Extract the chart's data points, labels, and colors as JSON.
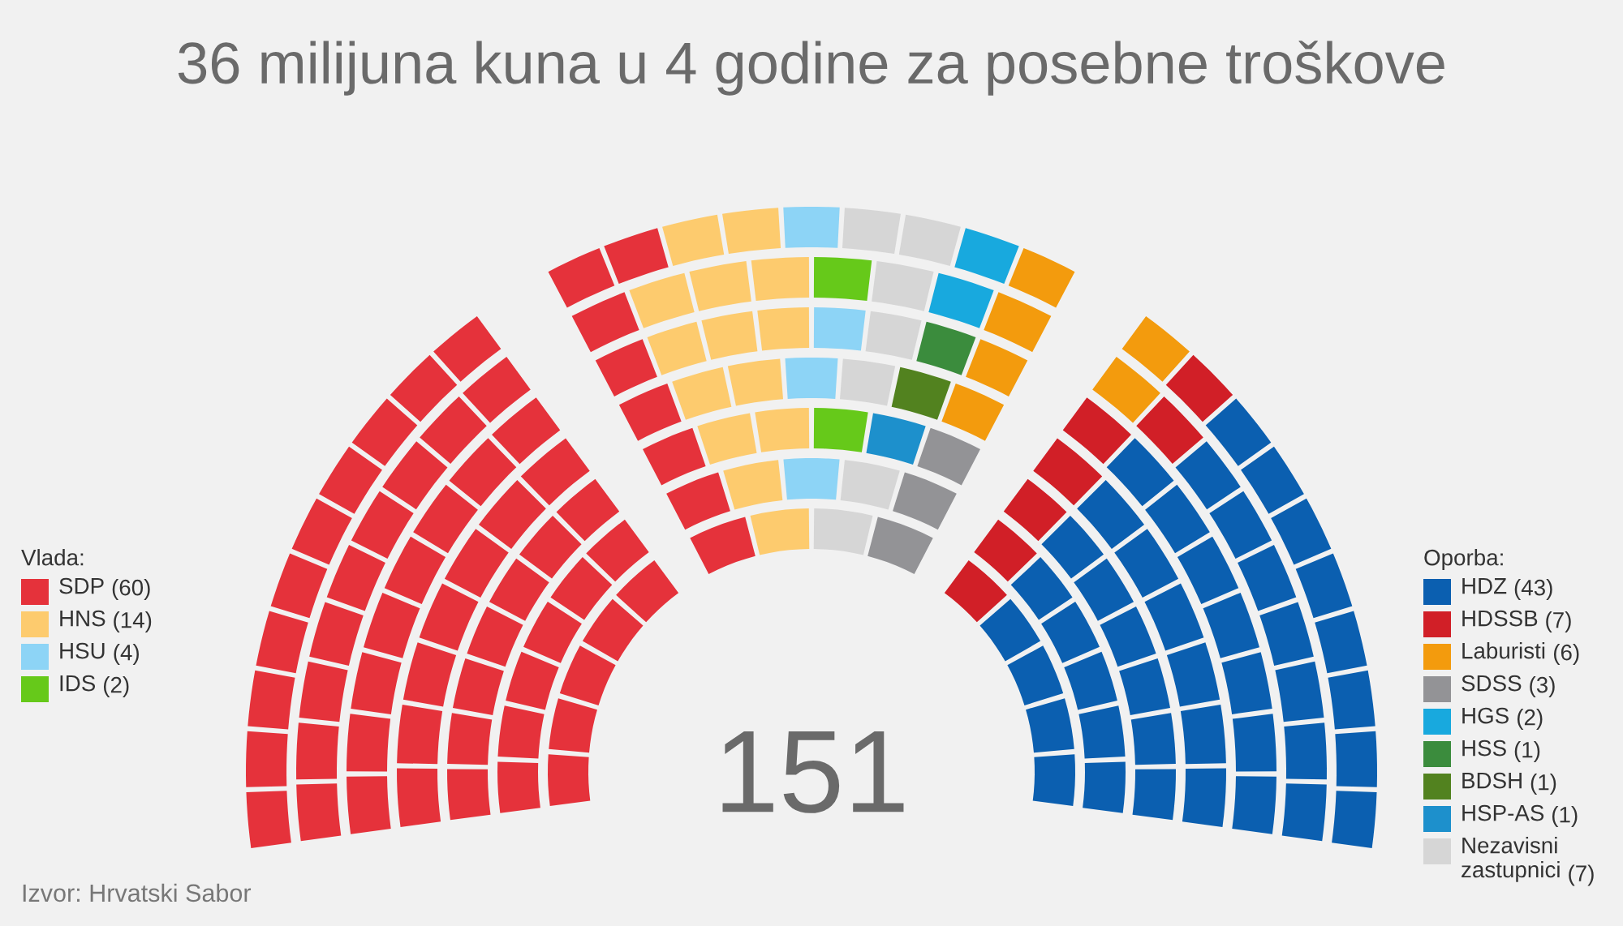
{
  "chart_data": [
    {
      "type": "other",
      "title": "36 milijuna kuna u 4 godine za posebne troškove",
      "legend_title": "Vlada:",
      "legend": "left",
      "series": [
        {
          "name": "SDP",
          "color": "#e5323b",
          "values": [
            60
          ],
          "value_labels": [
            "(60)"
          ]
        },
        {
          "name": "HNS",
          "color": "#fdcb6e",
          "values": [
            14
          ],
          "value_labels": [
            "(14)"
          ]
        },
        {
          "name": "HSU",
          "color": "#8dd4f6",
          "values": [
            4
          ],
          "value_labels": [
            "(4)"
          ]
        },
        {
          "name": "IDS",
          "color": "#66c91a",
          "values": [
            2
          ],
          "value_labels": [
            "(2)"
          ]
        }
      ],
      "annotations": [
        "151",
        "Izvor: Hrvatski Sabor"
      ]
    },
    {
      "type": "other",
      "legend_title": "Oporba:",
      "legend": "right",
      "series": [
        {
          "name": "HDZ",
          "color": "#0b5fb0",
          "values": [
            43
          ],
          "value_labels": [
            "(43)"
          ]
        },
        {
          "name": "HDSSB",
          "color": "#d11f27",
          "values": [
            7
          ],
          "value_labels": [
            "(7)"
          ]
        },
        {
          "name": "Laburisti",
          "color": "#f39b0d",
          "values": [
            6
          ],
          "value_labels": [
            "(6)"
          ]
        },
        {
          "name": "SDSS",
          "color": "#939396",
          "values": [
            3
          ],
          "value_labels": [
            "(3)"
          ]
        },
        {
          "name": "HGS",
          "color": "#18a9de",
          "values": [
            2
          ],
          "value_labels": [
            "(2)"
          ]
        },
        {
          "name": "HSS",
          "color": "#3b8c3d",
          "values": [
            1
          ],
          "value_labels": [
            "(1)"
          ]
        },
        {
          "name": "BDSH",
          "color": "#52821f",
          "values": [
            1
          ],
          "value_labels": [
            "(1)"
          ]
        },
        {
          "name": "HSP-AS",
          "color": "#1d90cc",
          "values": [
            1
          ],
          "value_labels": [
            "(1)"
          ]
        },
        {
          "name": "Nezavisni zastupnici",
          "color": "#d6d6d6",
          "values": [
            7
          ],
          "value_labels": [
            "(7)"
          ]
        }
      ]
    }
  ]
}
